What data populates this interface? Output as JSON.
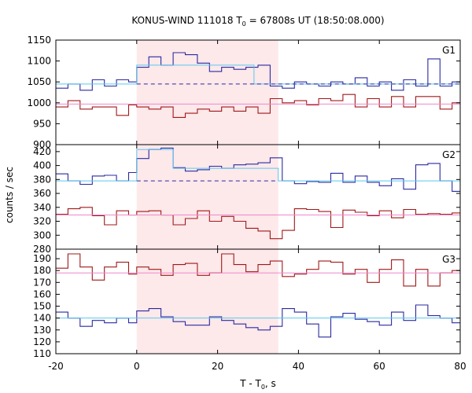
{
  "chart_data": {
    "type": "line",
    "title": "KONUS-WIND 111018 T₀ = 67808s UT (18:50:08.000)",
    "title_parts": {
      "before": "KONUS-WIND 111018 T",
      "sub": "0",
      "after": " = 67808s UT (18:50:08.000)"
    },
    "xlabel_parts": {
      "before": "T - T",
      "sub": "0",
      "after": ", s"
    },
    "ylabel": "counts / sec",
    "xlim": [
      -20,
      80
    ],
    "xticks": [
      -20,
      0,
      20,
      40,
      60,
      80
    ],
    "highlight_interval": [
      0,
      35
    ],
    "colors": {
      "red_series": "#a01818",
      "blue_series": "#2a2aa0",
      "fit_cyan": "#5bc8ee",
      "fit_pink": "#ee88cc",
      "dashed_blue": "#2a2aa0",
      "highlight": "#fde8ea"
    },
    "panels": [
      {
        "label": "G1",
        "ylim": [
          900,
          1150
        ],
        "yticks": [
          900,
          950,
          1000,
          1050,
          1100,
          1150
        ],
        "series": [
          {
            "color": "blue",
            "style": "step",
            "x": [
              -20,
              -17,
              -14,
              -11,
              -8,
              -5,
              -2,
              0,
              3,
              6,
              9,
              12,
              15,
              18,
              21,
              24,
              27,
              30,
              33,
              36,
              39,
              42,
              45,
              48,
              51,
              54,
              57,
              60,
              63,
              66,
              69,
              72,
              75,
              78,
              80
            ],
            "y": [
              1035,
              1045,
              1030,
              1055,
              1040,
              1055,
              1050,
              1085,
              1110,
              1090,
              1120,
              1115,
              1095,
              1075,
              1085,
              1080,
              1085,
              1090,
              1040,
              1035,
              1050,
              1045,
              1040,
              1050,
              1045,
              1060,
              1040,
              1050,
              1030,
              1055,
              1040,
              1105,
              1040,
              1050,
              1045
            ]
          },
          {
            "color": "red",
            "style": "step",
            "x": [
              -20,
              -17,
              -14,
              -11,
              -8,
              -5,
              -2,
              0,
              3,
              6,
              9,
              12,
              15,
              18,
              21,
              24,
              27,
              30,
              33,
              36,
              39,
              42,
              45,
              48,
              51,
              54,
              57,
              60,
              63,
              66,
              69,
              72,
              75,
              78,
              80
            ],
            "y": [
              990,
              1005,
              985,
              990,
              990,
              970,
              995,
              990,
              985,
              990,
              965,
              975,
              985,
              980,
              990,
              980,
              990,
              975,
              1010,
              1000,
              1005,
              995,
              1010,
              1005,
              1020,
              990,
              1010,
              990,
              1015,
              990,
              1015,
              1015,
              985,
              1000,
              1005
            ]
          },
          {
            "color": "cyan",
            "style": "step",
            "x": [
              -20,
              0,
              29,
              80
            ],
            "y": [
              1045,
              1090,
              1045,
              1045
            ]
          },
          {
            "color": "dashed",
            "style": "hline",
            "x": [
              0,
              80
            ],
            "y": [
              1045,
              1045
            ]
          },
          {
            "color": "pink",
            "style": "hline",
            "x": [
              -20,
              80
            ],
            "y": [
              997,
              997
            ]
          }
        ]
      },
      {
        "label": "G2",
        "ylim": [
          280,
          430
        ],
        "yticks": [
          280,
          300,
          320,
          340,
          360,
          380,
          400,
          420
        ],
        "series": [
          {
            "color": "blue",
            "style": "step",
            "x": [
              -20,
              -17,
              -14,
              -11,
              -8,
              -5,
              -2,
              0,
              3,
              6,
              9,
              12,
              15,
              18,
              21,
              24,
              27,
              30,
              33,
              36,
              39,
              42,
              45,
              48,
              51,
              54,
              57,
              60,
              63,
              66,
              69,
              72,
              75,
              78,
              80
            ],
            "y": [
              388,
              378,
              373,
              385,
              386,
              378,
              390,
              410,
              423,
              425,
              397,
              392,
              394,
              399,
              396,
              401,
              402,
              404,
              411,
              378,
              374,
              377,
              376,
              389,
              376,
              385,
              376,
              371,
              381,
              366,
              401,
              403,
              378,
              363,
              383
            ]
          },
          {
            "color": "red",
            "style": "step",
            "x": [
              -20,
              -17,
              -14,
              -11,
              -8,
              -5,
              -2,
              0,
              3,
              6,
              9,
              12,
              15,
              18,
              21,
              24,
              27,
              30,
              33,
              36,
              39,
              42,
              45,
              48,
              51,
              54,
              57,
              60,
              63,
              66,
              69,
              72,
              75,
              78,
              80
            ],
            "y": [
              330,
              338,
              340,
              328,
              315,
              335,
              329,
              334,
              335,
              329,
              315,
              324,
              335,
              320,
              327,
              320,
              310,
              306,
              295,
              307,
              338,
              337,
              334,
              311,
              336,
              333,
              328,
              335,
              325,
              337,
              330,
              331,
              330,
              332,
              325
            ]
          },
          {
            "color": "cyan",
            "style": "step",
            "x": [
              -20,
              0,
              3,
              9,
              35,
              80
            ],
            "y": [
              378,
              423,
              423,
              396,
              378,
              378
            ]
          },
          {
            "color": "dashed",
            "style": "hline",
            "x": [
              0,
              35
            ],
            "y": [
              378,
              378
            ]
          },
          {
            "color": "pink",
            "style": "hline",
            "x": [
              -20,
              80
            ],
            "y": [
              329,
              329
            ]
          }
        ]
      },
      {
        "label": "G3",
        "ylim": [
          110,
          198
        ],
        "yticks": [
          110,
          120,
          130,
          140,
          150,
          160,
          170,
          180,
          190
        ],
        "series": [
          {
            "color": "red",
            "style": "step",
            "x": [
              -20,
              -17,
              -14,
              -11,
              -8,
              -5,
              -2,
              0,
              3,
              6,
              9,
              12,
              15,
              18,
              21,
              24,
              27,
              30,
              33,
              36,
              39,
              42,
              45,
              48,
              51,
              54,
              57,
              60,
              63,
              66,
              69,
              72,
              75,
              78,
              80
            ],
            "y": [
              182,
              194,
              183,
              172,
              183,
              187,
              177,
              183,
              181,
              176,
              185,
              186,
              176,
              178,
              194,
              185,
              179,
              185,
              188,
              175,
              177,
              181,
              188,
              187,
              177,
              181,
              170,
              181,
              189,
              167,
              181,
              167,
              178,
              180,
              172
            ]
          },
          {
            "color": "blue",
            "style": "step",
            "x": [
              -20,
              -17,
              -14,
              -11,
              -8,
              -5,
              -2,
              0,
              3,
              6,
              9,
              12,
              15,
              18,
              21,
              24,
              27,
              30,
              33,
              36,
              39,
              42,
              45,
              48,
              51,
              54,
              57,
              60,
              63,
              66,
              69,
              72,
              75,
              78,
              80
            ],
            "y": [
              145,
              140,
              133,
              138,
              136,
              140,
              136,
              146,
              148,
              141,
              137,
              134,
              134,
              141,
              138,
              135,
              132,
              130,
              133,
              148,
              145,
              135,
              124,
              141,
              144,
              139,
              137,
              134,
              145,
              138,
              151,
              142,
              140,
              136,
              140
            ]
          },
          {
            "color": "cyan",
            "style": "hline",
            "x": [
              -20,
              80
            ],
            "y": [
              140,
              140
            ]
          },
          {
            "color": "pink",
            "style": "hline",
            "x": [
              -20,
              80
            ],
            "y": [
              178,
              178
            ]
          }
        ]
      }
    ]
  }
}
